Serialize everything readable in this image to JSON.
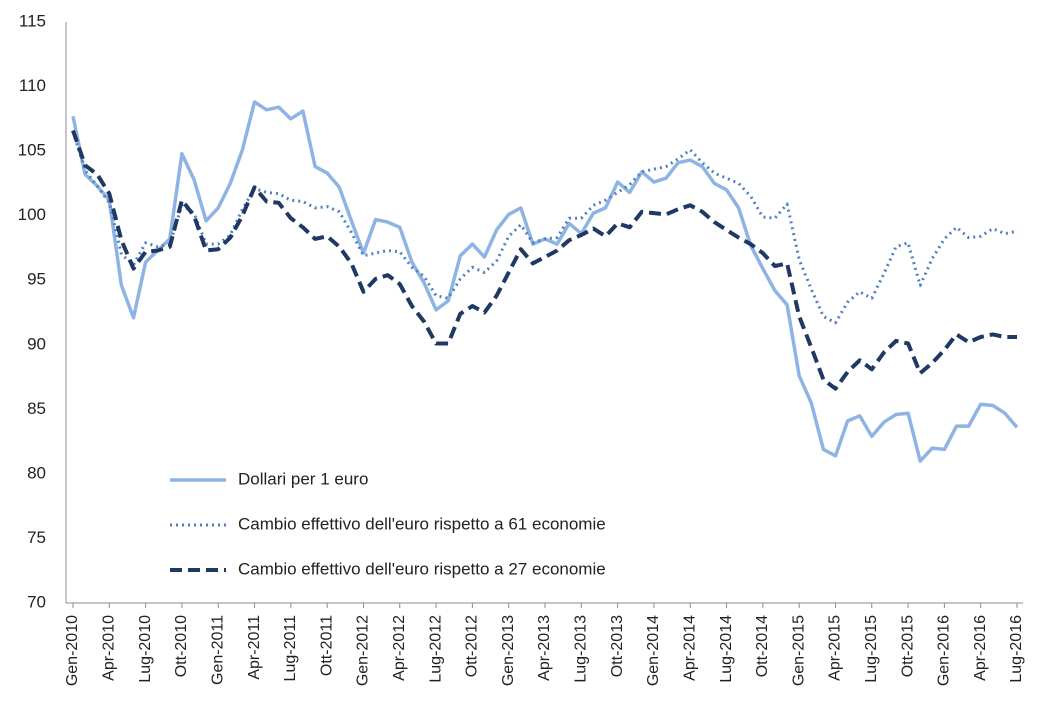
{
  "chart_data": {
    "type": "line",
    "categories": [
      "Gen-2010",
      null,
      null,
      "Apr-2010",
      null,
      null,
      "Lug-2010",
      null,
      null,
      "Ott-2010",
      null,
      null,
      "Gen-2011",
      null,
      null,
      "Apr-2011",
      null,
      null,
      "Lug-2011",
      null,
      null,
      "Ott-2011",
      null,
      null,
      "Gen-2012",
      null,
      null,
      "Apr-2012",
      null,
      null,
      "Lug-2012",
      null,
      null,
      "Ott-2012",
      null,
      null,
      "Gen-2013",
      null,
      null,
      "Apr-2013",
      null,
      null,
      "Lug-2013",
      null,
      null,
      "Ott-2013",
      null,
      null,
      "Gen-2014",
      null,
      null,
      "Apr-2014",
      null,
      null,
      "Lug-2014",
      null,
      null,
      "Ott-2014",
      null,
      null,
      "Gen-2015",
      null,
      null,
      "Apr-2015",
      null,
      null,
      "Lug-2015",
      null,
      null,
      "Ott-2015",
      null,
      null,
      "Gen-2016",
      null,
      null,
      "Apr-2016",
      null,
      null,
      "Lug-2016"
    ],
    "series": [
      {
        "name": "Dollari per 1 euro",
        "color": "#8eb4e3",
        "style": "solid",
        "values": [
          107.7,
          103.2,
          102.3,
          101.2,
          94.6,
          92.1,
          96.4,
          97.3,
          98.2,
          104.8,
          102.8,
          99.6,
          100.6,
          102.5,
          105.1,
          108.8,
          108.2,
          108.4,
          107.5,
          108.1,
          103.8,
          103.3,
          102.2,
          99.6,
          97.1,
          99.7,
          99.5,
          99.1,
          96.4,
          94.8,
          92.7,
          93.4,
          96.9,
          97.8,
          96.8,
          98.9,
          100.1,
          100.6,
          97.8,
          98.2,
          97.8,
          99.4,
          98.6,
          100.2,
          100.6,
          102.6,
          101.8,
          103.4,
          102.6,
          102.9,
          104.1,
          104.3,
          103.8,
          102.5,
          102.0,
          100.6,
          97.7,
          95.9,
          94.2,
          93.1,
          87.6,
          85.5,
          81.9,
          81.4,
          84.1,
          84.5,
          82.9,
          84.0,
          84.6,
          84.7,
          81.0,
          82.0,
          81.9,
          83.7,
          83.7,
          85.4,
          85.3,
          84.7,
          83.6
        ]
      },
      {
        "name": "Cambio effettivo dell'euro rispetto a 61 economie",
        "color": "#4f81bd",
        "style": "dotted",
        "values": [
          106.5,
          103.5,
          102.3,
          101.0,
          97.0,
          96.2,
          97.9,
          97.6,
          97.8,
          100.8,
          100.2,
          97.8,
          97.8,
          98.5,
          100.5,
          102.1,
          101.8,
          101.7,
          101.2,
          101.1,
          100.6,
          100.7,
          100.3,
          98.7,
          96.9,
          97.1,
          97.3,
          97.2,
          96.0,
          95.3,
          93.8,
          93.6,
          95.1,
          96.0,
          95.6,
          96.5,
          98.4,
          99.3,
          97.9,
          98.2,
          98.3,
          99.8,
          99.8,
          100.8,
          101.2,
          101.8,
          102.4,
          103.4,
          103.6,
          103.8,
          104.4,
          105.1,
          104.1,
          103.3,
          102.9,
          102.5,
          101.5,
          99.9,
          99.8,
          100.9,
          96.6,
          94.3,
          92.2,
          91.7,
          93.3,
          94.1,
          93.6,
          95.5,
          97.6,
          97.9,
          94.6,
          96.7,
          98.2,
          99.1,
          98.3,
          98.4,
          99.0,
          98.6,
          98.8
        ]
      },
      {
        "name": "Cambio effettivo dell'euro rispetto a 27 economie",
        "color": "#1f3864",
        "style": "dashed",
        "values": [
          106.6,
          103.9,
          103.2,
          101.7,
          98.1,
          95.9,
          97.2,
          97.3,
          97.6,
          101.2,
          100.0,
          97.3,
          97.4,
          98.3,
          100.0,
          102.2,
          101.1,
          101.0,
          99.8,
          99.1,
          98.2,
          98.4,
          97.6,
          96.3,
          94.1,
          95.1,
          95.4,
          94.7,
          93.0,
          91.8,
          90.1,
          90.1,
          92.4,
          93.0,
          92.5,
          93.8,
          95.6,
          97.4,
          96.3,
          96.8,
          97.3,
          98.1,
          98.5,
          99.0,
          98.4,
          99.4,
          99.1,
          100.3,
          100.2,
          100.1,
          100.5,
          100.8,
          100.3,
          99.5,
          98.9,
          98.3,
          97.8,
          97.1,
          96.1,
          96.3,
          92.2,
          89.8,
          87.3,
          86.6,
          87.9,
          88.8,
          88.1,
          89.4,
          90.3,
          90.1,
          87.8,
          88.6,
          89.6,
          90.8,
          90.2,
          90.6,
          90.8,
          90.6,
          90.6
        ]
      }
    ],
    "ylim": [
      70,
      115
    ],
    "yticks": [
      70,
      75,
      80,
      85,
      90,
      95,
      100,
      105,
      110,
      115
    ],
    "grid": false
  }
}
